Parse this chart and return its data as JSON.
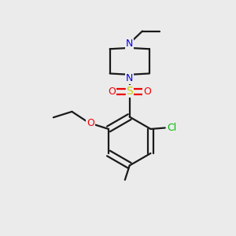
{
  "bg_color": "#ebebeb",
  "bond_color": "#1a1a1a",
  "N_color": "#0000ee",
  "O_color": "#ee0000",
  "S_color": "#cccc00",
  "Cl_color": "#00bb00",
  "line_width": 1.6,
  "figsize": [
    3.0,
    3.0
  ],
  "dpi": 100,
  "xlim": [
    0,
    10
  ],
  "ylim": [
    0,
    10
  ]
}
